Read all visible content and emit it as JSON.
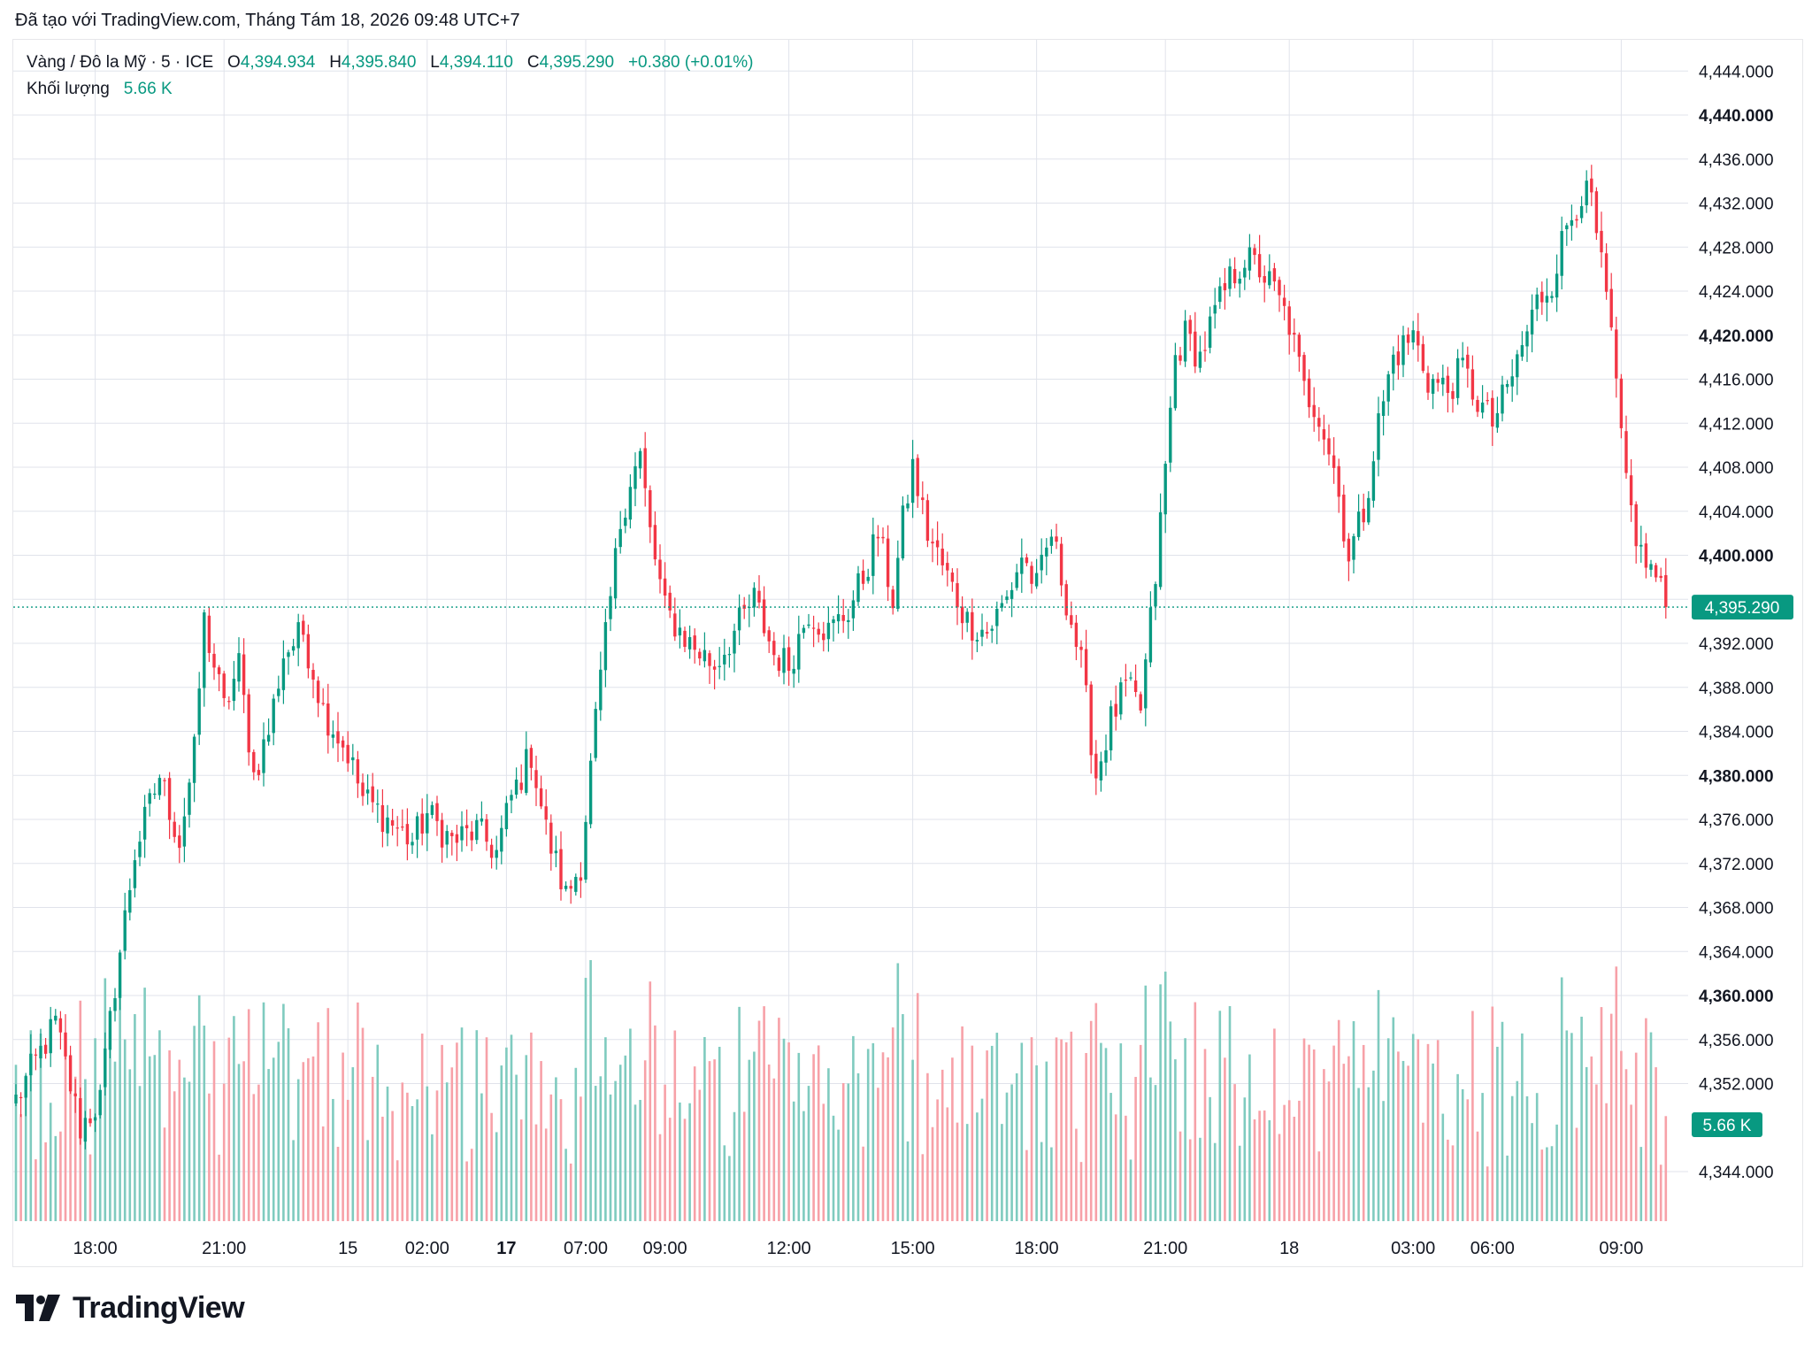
{
  "header": {
    "created_with": "Đã tạo với TradingView.com, Tháng Tám 18, 2026 09:48 UTC+7"
  },
  "legend": {
    "symbol": "Vàng / Đô la Mỹ · 5 · ICE",
    "open_label": "O",
    "open": "4,394.934",
    "high_label": "H",
    "high": "4,395.840",
    "low_label": "L",
    "low": "4,394.110",
    "close_label": "C",
    "close": "4,395.290",
    "change": "+0.380 (+0.01%)",
    "volume_label": "Khối lượng",
    "volume": "5.66 K"
  },
  "colors": {
    "up": "#089981",
    "down": "#f23645",
    "up_volume": "#7fcbbf",
    "down_volume": "#f7a1a8",
    "grid": "#e0e3eb",
    "last_price": "#089981"
  },
  "brand": {
    "logo_icon": "tradingview-logo-icon",
    "name": "TradingView"
  },
  "chart_data": {
    "type": "candlestick",
    "title": "",
    "xlabel": "",
    "ylabel": "",
    "ylim": [
      4340,
      4446
    ],
    "y_ticks": [
      {
        "value": 4444,
        "label": "4,444.000",
        "bold": false
      },
      {
        "value": 4440,
        "label": "4,440.000",
        "bold": true
      },
      {
        "value": 4436,
        "label": "4,436.000",
        "bold": false
      },
      {
        "value": 4432,
        "label": "4,432.000",
        "bold": false
      },
      {
        "value": 4428,
        "label": "4,428.000",
        "bold": false
      },
      {
        "value": 4424,
        "label": "4,424.000",
        "bold": false
      },
      {
        "value": 4420,
        "label": "4,420.000",
        "bold": true
      },
      {
        "value": 4416,
        "label": "4,416.000",
        "bold": false
      },
      {
        "value": 4412,
        "label": "4,412.000",
        "bold": false
      },
      {
        "value": 4408,
        "label": "4,408.000",
        "bold": false
      },
      {
        "value": 4404,
        "label": "4,404.000",
        "bold": false
      },
      {
        "value": 4400,
        "label": "4,400.000",
        "bold": true
      },
      {
        "value": 4392,
        "label": "4,392.000",
        "bold": false
      },
      {
        "value": 4388,
        "label": "4,388.000",
        "bold": false
      },
      {
        "value": 4384,
        "label": "4,384.000",
        "bold": false
      },
      {
        "value": 4380,
        "label": "4,380.000",
        "bold": true
      },
      {
        "value": 4376,
        "label": "4,376.000",
        "bold": false
      },
      {
        "value": 4372,
        "label": "4,372.000",
        "bold": false
      },
      {
        "value": 4368,
        "label": "4,368.000",
        "bold": false
      },
      {
        "value": 4364,
        "label": "4,364.000",
        "bold": false
      },
      {
        "value": 4360,
        "label": "4,360.000",
        "bold": true
      },
      {
        "value": 4356,
        "label": "4,356.000",
        "bold": false
      },
      {
        "value": 4352,
        "label": "4,352.000",
        "bold": false
      },
      {
        "value": 4344,
        "label": "4,344.000",
        "bold": false
      }
    ],
    "last_price": {
      "value": 4395.29,
      "label": "4,395.290"
    },
    "last_volume": {
      "label": "5.66 K"
    },
    "x_ticks": [
      {
        "label": "18:00",
        "bold": false
      },
      {
        "label": "21:00",
        "bold": false
      },
      {
        "label": "15",
        "bold": false
      },
      {
        "label": "02:00",
        "bold": false
      },
      {
        "label": "17",
        "bold": true
      },
      {
        "label": "07:00",
        "bold": false
      },
      {
        "label": "09:00",
        "bold": false
      },
      {
        "label": "12:00",
        "bold": false
      },
      {
        "label": "15:00",
        "bold": false
      },
      {
        "label": "18:00",
        "bold": false
      },
      {
        "label": "21:00",
        "bold": false
      },
      {
        "label": "18",
        "bold": false
      },
      {
        "label": "03:00",
        "bold": false
      },
      {
        "label": "06:00",
        "bold": false
      },
      {
        "label": "09:00",
        "bold": false
      }
    ],
    "x_tick_bar_index": [
      16,
      42,
      67,
      83,
      99,
      115,
      131,
      156,
      181,
      206,
      232,
      257,
      282,
      298,
      324
    ],
    "grid": true,
    "legend": "top-left",
    "bar_interval": "5m",
    "close_path": [
      {
        "bar": 0,
        "close": 4350.5
      },
      {
        "bar": 8,
        "close": 4357.5
      },
      {
        "bar": 13,
        "close": 4348.0
      },
      {
        "bar": 17,
        "close": 4350.5
      },
      {
        "bar": 20,
        "close": 4361.0
      },
      {
        "bar": 24,
        "close": 4373.0
      },
      {
        "bar": 29,
        "close": 4380.0
      },
      {
        "bar": 33,
        "close": 4374.0
      },
      {
        "bar": 36,
        "close": 4382.0
      },
      {
        "bar": 38,
        "close": 4394.0
      },
      {
        "bar": 42,
        "close": 4386.0
      },
      {
        "bar": 45,
        "close": 4390.0
      },
      {
        "bar": 48,
        "close": 4380.0
      },
      {
        "bar": 51,
        "close": 4384.0
      },
      {
        "bar": 54,
        "close": 4391.0
      },
      {
        "bar": 58,
        "close": 4393.0
      },
      {
        "bar": 62,
        "close": 4386.0
      },
      {
        "bar": 67,
        "close": 4382.0
      },
      {
        "bar": 70,
        "close": 4378.0
      },
      {
        "bar": 75,
        "close": 4376.0
      },
      {
        "bar": 80,
        "close": 4374.0
      },
      {
        "bar": 83,
        "close": 4376.5
      },
      {
        "bar": 88,
        "close": 4374.0
      },
      {
        "bar": 93,
        "close": 4375.0
      },
      {
        "bar": 97,
        "close": 4373.0
      },
      {
        "bar": 100,
        "close": 4378.0
      },
      {
        "bar": 104,
        "close": 4382.0
      },
      {
        "bar": 107,
        "close": 4375.0
      },
      {
        "bar": 111,
        "close": 4369.0
      },
      {
        "bar": 114,
        "close": 4372.0
      },
      {
        "bar": 117,
        "close": 4385.0
      },
      {
        "bar": 120,
        "close": 4396.0
      },
      {
        "bar": 122,
        "close": 4403.0
      },
      {
        "bar": 124,
        "close": 4407.0
      },
      {
        "bar": 126,
        "close": 4409.0
      },
      {
        "bar": 128,
        "close": 4402.0
      },
      {
        "bar": 131,
        "close": 4395.0
      },
      {
        "bar": 136,
        "close": 4392.0
      },
      {
        "bar": 141,
        "close": 4390.0
      },
      {
        "bar": 145,
        "close": 4393.0
      },
      {
        "bar": 149,
        "close": 4396.0
      },
      {
        "bar": 153,
        "close": 4391.0
      },
      {
        "bar": 156,
        "close": 4390.0
      },
      {
        "bar": 160,
        "close": 4395.0
      },
      {
        "bar": 164,
        "close": 4393.0
      },
      {
        "bar": 168,
        "close": 4395.0
      },
      {
        "bar": 171,
        "close": 4398.0
      },
      {
        "bar": 174,
        "close": 4402.0
      },
      {
        "bar": 177,
        "close": 4396.0
      },
      {
        "bar": 179,
        "close": 4403.0
      },
      {
        "bar": 181,
        "close": 4408.0
      },
      {
        "bar": 184,
        "close": 4402.0
      },
      {
        "bar": 188,
        "close": 4398.0
      },
      {
        "bar": 192,
        "close": 4394.0
      },
      {
        "bar": 196,
        "close": 4393.0
      },
      {
        "bar": 200,
        "close": 4396.0
      },
      {
        "bar": 203,
        "close": 4400.0
      },
      {
        "bar": 206,
        "close": 4397.0
      },
      {
        "bar": 209,
        "close": 4402.0
      },
      {
        "bar": 212,
        "close": 4396.0
      },
      {
        "bar": 215,
        "close": 4390.0
      },
      {
        "bar": 218,
        "close": 4380.0
      },
      {
        "bar": 221,
        "close": 4385.0
      },
      {
        "bar": 224,
        "close": 4388.0
      },
      {
        "bar": 227,
        "close": 4386.0
      },
      {
        "bar": 230,
        "close": 4398.0
      },
      {
        "bar": 232,
        "close": 4408.0
      },
      {
        "bar": 234,
        "close": 4418.0
      },
      {
        "bar": 236,
        "close": 4420.0
      },
      {
        "bar": 239,
        "close": 4418.0
      },
      {
        "bar": 242,
        "close": 4422.0
      },
      {
        "bar": 245,
        "close": 4425.0
      },
      {
        "bar": 248,
        "close": 4427.0
      },
      {
        "bar": 251,
        "close": 4426.0
      },
      {
        "bar": 254,
        "close": 4424.0
      },
      {
        "bar": 257,
        "close": 4421.0
      },
      {
        "bar": 260,
        "close": 4415.0
      },
      {
        "bar": 263,
        "close": 4413.0
      },
      {
        "bar": 266,
        "close": 4408.0
      },
      {
        "bar": 269,
        "close": 4400.0
      },
      {
        "bar": 272,
        "close": 4404.0
      },
      {
        "bar": 275,
        "close": 4412.0
      },
      {
        "bar": 278,
        "close": 4418.0
      },
      {
        "bar": 282,
        "close": 4420.0
      },
      {
        "bar": 285,
        "close": 4416.0
      },
      {
        "bar": 289,
        "close": 4415.0
      },
      {
        "bar": 292,
        "close": 4417.0
      },
      {
        "bar": 295,
        "close": 4414.0
      },
      {
        "bar": 298,
        "close": 4412.0
      },
      {
        "bar": 301,
        "close": 4415.0
      },
      {
        "bar": 304,
        "close": 4419.0
      },
      {
        "bar": 307,
        "close": 4423.0
      },
      {
        "bar": 310,
        "close": 4425.0
      },
      {
        "bar": 313,
        "close": 4430.0
      },
      {
        "bar": 316,
        "close": 4433.0
      },
      {
        "bar": 318,
        "close": 4432.0
      },
      {
        "bar": 320,
        "close": 4426.0
      },
      {
        "bar": 322,
        "close": 4420.0
      },
      {
        "bar": 324,
        "close": 4410.0
      },
      {
        "bar": 326,
        "close": 4404.0
      },
      {
        "bar": 328,
        "close": 4400.0
      },
      {
        "bar": 331,
        "close": 4398.0
      },
      {
        "bar": 333,
        "close": 4395.29
      }
    ]
  }
}
